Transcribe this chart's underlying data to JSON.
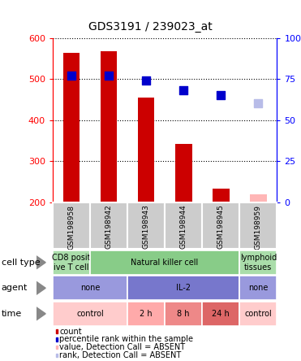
{
  "title": "GDS3191 / 239023_at",
  "samples": [
    "GSM198958",
    "GSM198942",
    "GSM198943",
    "GSM198944",
    "GSM198945",
    "GSM198959"
  ],
  "bar_values": [
    563,
    567,
    455,
    342,
    233,
    null
  ],
  "bar_absent": [
    null,
    null,
    null,
    null,
    null,
    220
  ],
  "bar_absent_color": "#ffb6b6",
  "rank_values": [
    77,
    77,
    74,
    68,
    65,
    null
  ],
  "rank_absent_values": [
    null,
    null,
    null,
    null,
    null,
    60
  ],
  "rank_absent_color": "#b8bce8",
  "rank_color": "#0000cc",
  "bar_color": "#cc0000",
  "ylim_left": [
    200,
    600
  ],
  "ylim_right": [
    0,
    100
  ],
  "yticks_left": [
    200,
    300,
    400,
    500,
    600
  ],
  "yticks_right": [
    0,
    25,
    50,
    75,
    100
  ],
  "ybase": 200,
  "cell_type_cells": [
    {
      "text": "CD8 posit\nive T cell",
      "color": "#aaddaa",
      "span": [
        0,
        1
      ]
    },
    {
      "text": "Natural killer cell",
      "color": "#88cc88",
      "span": [
        1,
        5
      ]
    },
    {
      "text": "lymphoid\ntissues",
      "color": "#aaddaa",
      "span": [
        5,
        6
      ]
    }
  ],
  "agent_cells": [
    {
      "text": "none",
      "color": "#9999dd",
      "span": [
        0,
        2
      ]
    },
    {
      "text": "IL-2",
      "color": "#7777cc",
      "span": [
        2,
        5
      ]
    },
    {
      "text": "none",
      "color": "#9999dd",
      "span": [
        5,
        6
      ]
    }
  ],
  "time_cells": [
    {
      "text": "control",
      "color": "#ffcccc",
      "span": [
        0,
        2
      ]
    },
    {
      "text": "2 h",
      "color": "#ffaaaa",
      "span": [
        2,
        3
      ]
    },
    {
      "text": "8 h",
      "color": "#ee8888",
      "span": [
        3,
        4
      ]
    },
    {
      "text": "24 h",
      "color": "#dd6666",
      "span": [
        4,
        5
      ]
    },
    {
      "text": "control",
      "color": "#ffcccc",
      "span": [
        5,
        6
      ]
    }
  ],
  "legend_items": [
    {
      "color": "#cc0000",
      "label": "count"
    },
    {
      "color": "#0000cc",
      "label": "percentile rank within the sample"
    },
    {
      "color": "#ffb6b6",
      "label": "value, Detection Call = ABSENT"
    },
    {
      "color": "#b8bce8",
      "label": "rank, Detection Call = ABSENT"
    }
  ],
  "plot_bg": "#ffffff",
  "xticklabel_bg": "#cccccc",
  "rank_marker_size": 55
}
